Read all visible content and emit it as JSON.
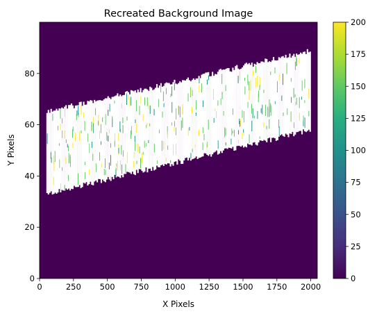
{
  "chart_data": {
    "type": "heatmap",
    "title": "Recreated Background Image",
    "xlabel": "X Pixels",
    "ylabel": "Y Pixels",
    "xlim": [
      0,
      2048
    ],
    "ylim": [
      0,
      100
    ],
    "x_ticks": [
      0,
      250,
      500,
      750,
      1000,
      1250,
      1500,
      1750,
      2000
    ],
    "y_ticks": [
      0,
      20,
      40,
      60,
      80
    ],
    "colorbar": {
      "min": 0,
      "max": 200,
      "ticks": [
        0,
        25,
        50,
        75,
        100,
        125,
        150,
        175,
        200
      ],
      "colormap": "viridis"
    },
    "background_value": 0,
    "band": {
      "x_range": [
        50,
        2000
      ],
      "lower_edge_y": [
        33,
        58
      ],
      "upper_edge_y": [
        65,
        89
      ],
      "fill": "white (unmapped / above range)",
      "speckle_value_range": [
        125,
        200
      ]
    },
    "colors": {
      "background": "#440154",
      "band": "#ffffff",
      "speckle_green": "#5ec962",
      "speckle_teal": "#21918c",
      "speckle_yellow": "#fde725"
    }
  }
}
